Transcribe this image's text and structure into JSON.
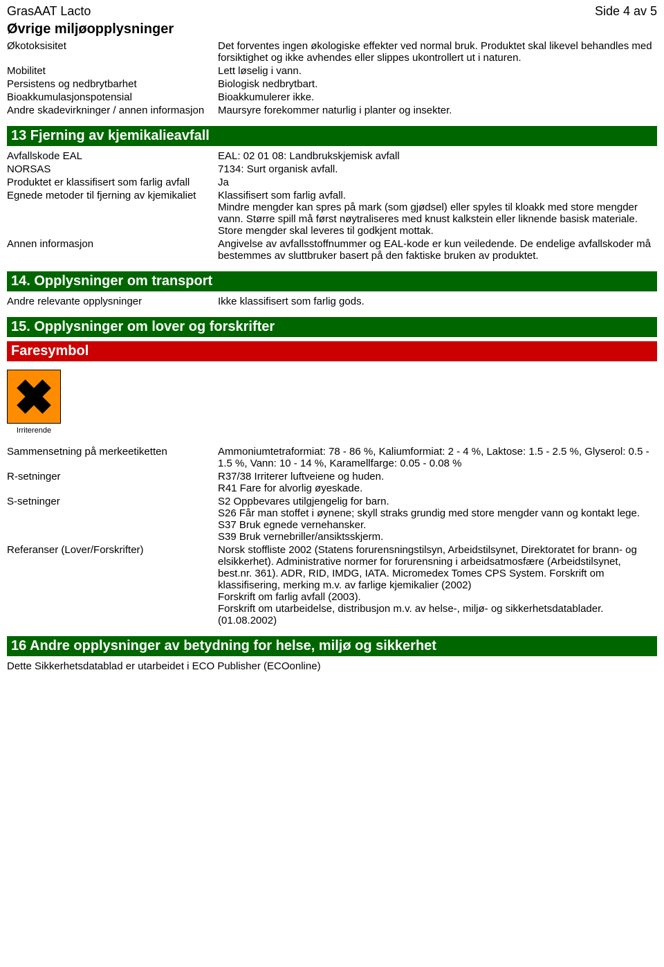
{
  "header": {
    "title": "GrasAAT Lacto",
    "page": "Side 4 av 5"
  },
  "colors": {
    "bar_green": "#006600",
    "bar_red": "#cc0000",
    "hazard_orange": "#ff8c00"
  },
  "env": {
    "title": "Øvrige miljøopplysninger",
    "rows": [
      {
        "label": "Økotoksisitet",
        "value": "Det forventes ingen økologiske effekter ved normal bruk. Produktet skal likevel behandles med forsiktighet og ikke avhendes eller slippes ukontrollert ut i naturen."
      },
      {
        "label": "Mobilitet",
        "value": "Lett løselig i vann."
      },
      {
        "label": "Persistens og nedbrytbarhet",
        "value": "Biologisk nedbrytbart."
      },
      {
        "label": "Bioakkumulasjonspotensial",
        "value": "Bioakkumulerer ikke."
      },
      {
        "label": "Andre skadevirkninger / annen informasjon",
        "value": "Maursyre forekommer naturlig i planter og insekter."
      }
    ]
  },
  "sec13": {
    "title": "13 Fjerning av kjemikalieavfall",
    "rows": [
      {
        "label": "Avfallskode EAL",
        "value": "EAL: 02 01 08: Landbrukskjemisk avfall"
      },
      {
        "label": "NORSAS",
        "value": "7134: Surt organisk avfall."
      },
      {
        "label": "Produktet er klassifisert som farlig avfall",
        "value": "Ja"
      },
      {
        "label": "Egnede metoder til fjerning av kjemikaliet",
        "value": "Klassifisert som farlig avfall.\nMindre mengder kan spres på mark (som gjødsel) eller spyles til kloakk med store mengder vann. Større spill må først nøytraliseres med knust kalkstein eller liknende basisk materiale. Store mengder skal leveres til godkjent mottak."
      },
      {
        "label": "Annen informasjon",
        "value": "Angivelse av avfallsstoffnummer og EAL-kode er kun veiledende. De endelige avfallskoder må bestemmes av sluttbruker basert på den faktiske bruken av produktet."
      }
    ]
  },
  "sec14": {
    "title": "14. Opplysninger om transport",
    "rows": [
      {
        "label": "Andre relevante opplysninger",
        "value": "Ikke klassifisert som farlig gods."
      }
    ]
  },
  "sec15": {
    "title": "15. Opplysninger om lover og forskrifter",
    "sub": "Faresymbol",
    "hazard_label": "Irriterende",
    "rows": [
      {
        "label": "Sammensetning på merkeetiketten",
        "value": "Ammoniumtetraformiat: 78 - 86 %, Kaliumformiat: 2 - 4 %, Laktose: 1.5 - 2.5 %, Glyserol: 0.5 - 1.5 %, Vann: 10 - 14 %, Karamellfarge: 0.05 - 0.08 %"
      },
      {
        "label": "R-setninger",
        "value": "R37/38 Irriterer luftveiene og huden.\nR41 Fare for alvorlig øyeskade."
      },
      {
        "label": "S-setninger",
        "value": "S2 Oppbevares utilgjengelig for barn.\nS26 Får man stoffet i øynene; skyll straks grundig med store mengder vann og kontakt lege.\nS37 Bruk egnede vernehansker.\nS39 Bruk vernebriller/ansiktsskjerm."
      },
      {
        "label": "Referanser (Lover/Forskrifter)",
        "value": "Norsk stoffliste 2002 (Statens forurensningstilsyn, Arbeidstilsynet, Direktoratet for brann- og elsikkerhet). Administrative normer for forurensning i arbeidsatmosfære (Arbeidstilsynet, best.nr. 361). ADR, RID, IMDG, IATA. Micromedex Tomes CPS System. Forskrift om klassifisering, merking m.v. av farlige kjemikalier (2002)\nForskrift om farlig avfall (2003).\nForskrift om utarbeidelse, distribusjon m.v. av helse-, miljø- og sikkerhetsdatablader. (01.08.2002)"
      }
    ]
  },
  "sec16": {
    "title": "16 Andre opplysninger av betydning for helse, miljø og sikkerhet",
    "footer": "Dette Sikkerhetsdatablad er utarbeidet i ECO Publisher (ECOonline)"
  }
}
